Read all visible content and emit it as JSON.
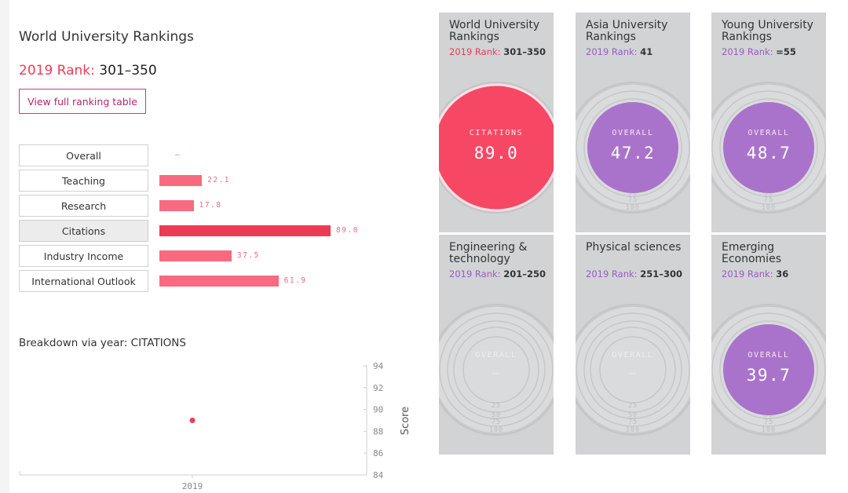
{
  "left_panel": {
    "title": "World University Rankings",
    "rank_label": "2019 Rank:",
    "rank_value": "301–350",
    "view_button": "View full ranking table",
    "pillars": [
      {
        "label": "Overall",
        "value": "–",
        "score": null,
        "active": false
      },
      {
        "label": "Teaching",
        "value": "22.1",
        "score": 22.1,
        "active": false
      },
      {
        "label": "Research",
        "value": "17.8",
        "score": 17.8,
        "active": false
      },
      {
        "label": "Citations",
        "value": "89.0",
        "score": 89.0,
        "active": true
      },
      {
        "label": "Industry Income",
        "value": "37.5",
        "score": 37.5,
        "active": false
      },
      {
        "label": "International Outlook",
        "value": "61.9",
        "score": 61.9,
        "active": false
      }
    ],
    "breakdown_title": "Breakdown via year: CITATIONS"
  },
  "chart_data": {
    "type": "scatter",
    "title": "Breakdown via year: CITATIONS",
    "xlabel": "",
    "ylabel": "Score",
    "x": [
      "2019"
    ],
    "series": [
      {
        "values": [
          89.0
        ]
      }
    ],
    "ylim": [
      84,
      94
    ],
    "yticks": [
      84,
      86,
      88,
      90,
      92,
      94
    ],
    "grid": false
  },
  "tiles": [
    {
      "title": "World University Rankings",
      "rank_label": "2019 Rank:",
      "rank_value": "301–350",
      "metric": "CITATIONS",
      "score": "89.0",
      "score_fraction": 0.89,
      "color": "#f64864"
    },
    {
      "title": "Asia University Rankings",
      "rank_label": "2019 Rank:",
      "rank_value": "41",
      "metric": "OVERALL",
      "score": "47.2",
      "score_fraction": 0.472,
      "color": "#a973cb"
    },
    {
      "title": "Young University Rankings",
      "rank_label": "2019 Rank:",
      "rank_value": "=55",
      "metric": "OVERALL",
      "score": "48.7",
      "score_fraction": 0.487,
      "color": "#a973cb"
    },
    {
      "title": "Engineering & technology",
      "rank_label": "2019 Rank:",
      "rank_value": "201–250",
      "metric": "OVERALL",
      "score": "—",
      "score_fraction": 0,
      "color": "#a973cb"
    },
    {
      "title": "Physical sciences",
      "rank_label": "2019 Rank:",
      "rank_value": "251–300",
      "metric": "OVERALL",
      "score": "—",
      "score_fraction": 0,
      "color": "#a973cb"
    },
    {
      "title": "Emerging Economies",
      "rank_label": "2019 Rank:",
      "rank_value": "36",
      "metric": "OVERALL",
      "score": "39.7",
      "score_fraction": 0.397,
      "color": "#a973cb"
    }
  ],
  "ring_labels": [
    "25",
    "50",
    "75",
    "100"
  ],
  "colors": {
    "accent_red": "#ee3b55",
    "accent_purple": "#a973cb",
    "button_magenta": "#b8246f",
    "tile_bg": "#d1d3d4"
  }
}
